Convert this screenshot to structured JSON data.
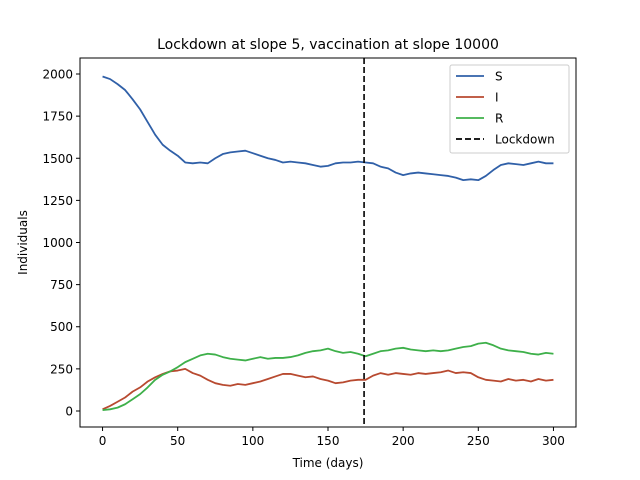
{
  "chart_data": {
    "type": "line",
    "title": "Lockdown at slope 5, vaccination at slope 10000",
    "xlabel": "Time (days)",
    "ylabel": "Individuals",
    "xlim": [
      -15,
      315
    ],
    "ylim": [
      -95,
      2095
    ],
    "xticks": [
      0,
      50,
      100,
      150,
      200,
      250,
      300
    ],
    "yticks": [
      0,
      250,
      500,
      750,
      1000,
      1250,
      1500,
      1750,
      2000
    ],
    "grid": false,
    "legend_position": "top-right",
    "series": [
      {
        "name": "S",
        "color": "#3060a8",
        "x": [
          0,
          5,
          10,
          15,
          20,
          25,
          30,
          35,
          40,
          45,
          50,
          55,
          60,
          65,
          70,
          75,
          80,
          85,
          90,
          95,
          100,
          105,
          110,
          115,
          120,
          125,
          130,
          135,
          140,
          145,
          150,
          155,
          160,
          165,
          170,
          175,
          180,
          185,
          190,
          195,
          200,
          205,
          210,
          215,
          220,
          225,
          230,
          235,
          240,
          245,
          250,
          255,
          260,
          265,
          270,
          275,
          280,
          285,
          290,
          295,
          300
        ],
        "values": [
          1985,
          1970,
          1940,
          1905,
          1850,
          1790,
          1715,
          1640,
          1580,
          1545,
          1515,
          1475,
          1470,
          1475,
          1470,
          1500,
          1525,
          1535,
          1540,
          1545,
          1530,
          1515,
          1500,
          1490,
          1475,
          1480,
          1475,
          1470,
          1460,
          1450,
          1455,
          1470,
          1475,
          1475,
          1480,
          1475,
          1470,
          1450,
          1440,
          1415,
          1400,
          1410,
          1415,
          1410,
          1405,
          1400,
          1395,
          1385,
          1370,
          1375,
          1370,
          1395,
          1430,
          1460,
          1470,
          1465,
          1460,
          1470,
          1480,
          1470,
          1470
        ]
      },
      {
        "name": "I",
        "color": "#b84a30",
        "x": [
          0,
          5,
          10,
          15,
          20,
          25,
          30,
          35,
          40,
          45,
          50,
          55,
          60,
          65,
          70,
          75,
          80,
          85,
          90,
          95,
          100,
          105,
          110,
          115,
          120,
          125,
          130,
          135,
          140,
          145,
          150,
          155,
          160,
          165,
          170,
          175,
          180,
          185,
          190,
          195,
          200,
          205,
          210,
          215,
          220,
          225,
          230,
          235,
          240,
          245,
          250,
          255,
          260,
          265,
          270,
          275,
          280,
          285,
          290,
          295,
          300
        ],
        "values": [
          10,
          30,
          55,
          80,
          115,
          140,
          175,
          200,
          220,
          235,
          240,
          250,
          225,
          210,
          185,
          165,
          155,
          150,
          160,
          155,
          165,
          175,
          190,
          205,
          220,
          220,
          210,
          200,
          205,
          190,
          180,
          165,
          170,
          180,
          185,
          185,
          210,
          225,
          215,
          225,
          220,
          215,
          225,
          220,
          225,
          230,
          240,
          225,
          230,
          225,
          200,
          185,
          180,
          175,
          190,
          180,
          185,
          175,
          190,
          180,
          185
        ]
      },
      {
        "name": "R",
        "color": "#3eb04a",
        "x": [
          0,
          5,
          10,
          15,
          20,
          25,
          30,
          35,
          40,
          45,
          50,
          55,
          60,
          65,
          70,
          75,
          80,
          85,
          90,
          95,
          100,
          105,
          110,
          115,
          120,
          125,
          130,
          135,
          140,
          145,
          150,
          155,
          160,
          165,
          170,
          175,
          180,
          185,
          190,
          195,
          200,
          205,
          210,
          215,
          220,
          225,
          230,
          235,
          240,
          245,
          250,
          255,
          260,
          265,
          270,
          275,
          280,
          285,
          290,
          295,
          300
        ],
        "values": [
          5,
          10,
          20,
          40,
          70,
          100,
          140,
          185,
          215,
          235,
          260,
          290,
          310,
          330,
          340,
          335,
          320,
          310,
          305,
          300,
          310,
          320,
          310,
          315,
          315,
          320,
          330,
          345,
          355,
          360,
          370,
          355,
          345,
          350,
          340,
          325,
          340,
          355,
          360,
          370,
          375,
          365,
          360,
          355,
          360,
          355,
          360,
          370,
          380,
          385,
          400,
          405,
          390,
          370,
          360,
          355,
          350,
          340,
          335,
          345,
          340
        ]
      }
    ],
    "vlines": [
      {
        "name": "Lockdown",
        "x": 174,
        "color": "#000000",
        "style": "dashed"
      }
    ]
  }
}
